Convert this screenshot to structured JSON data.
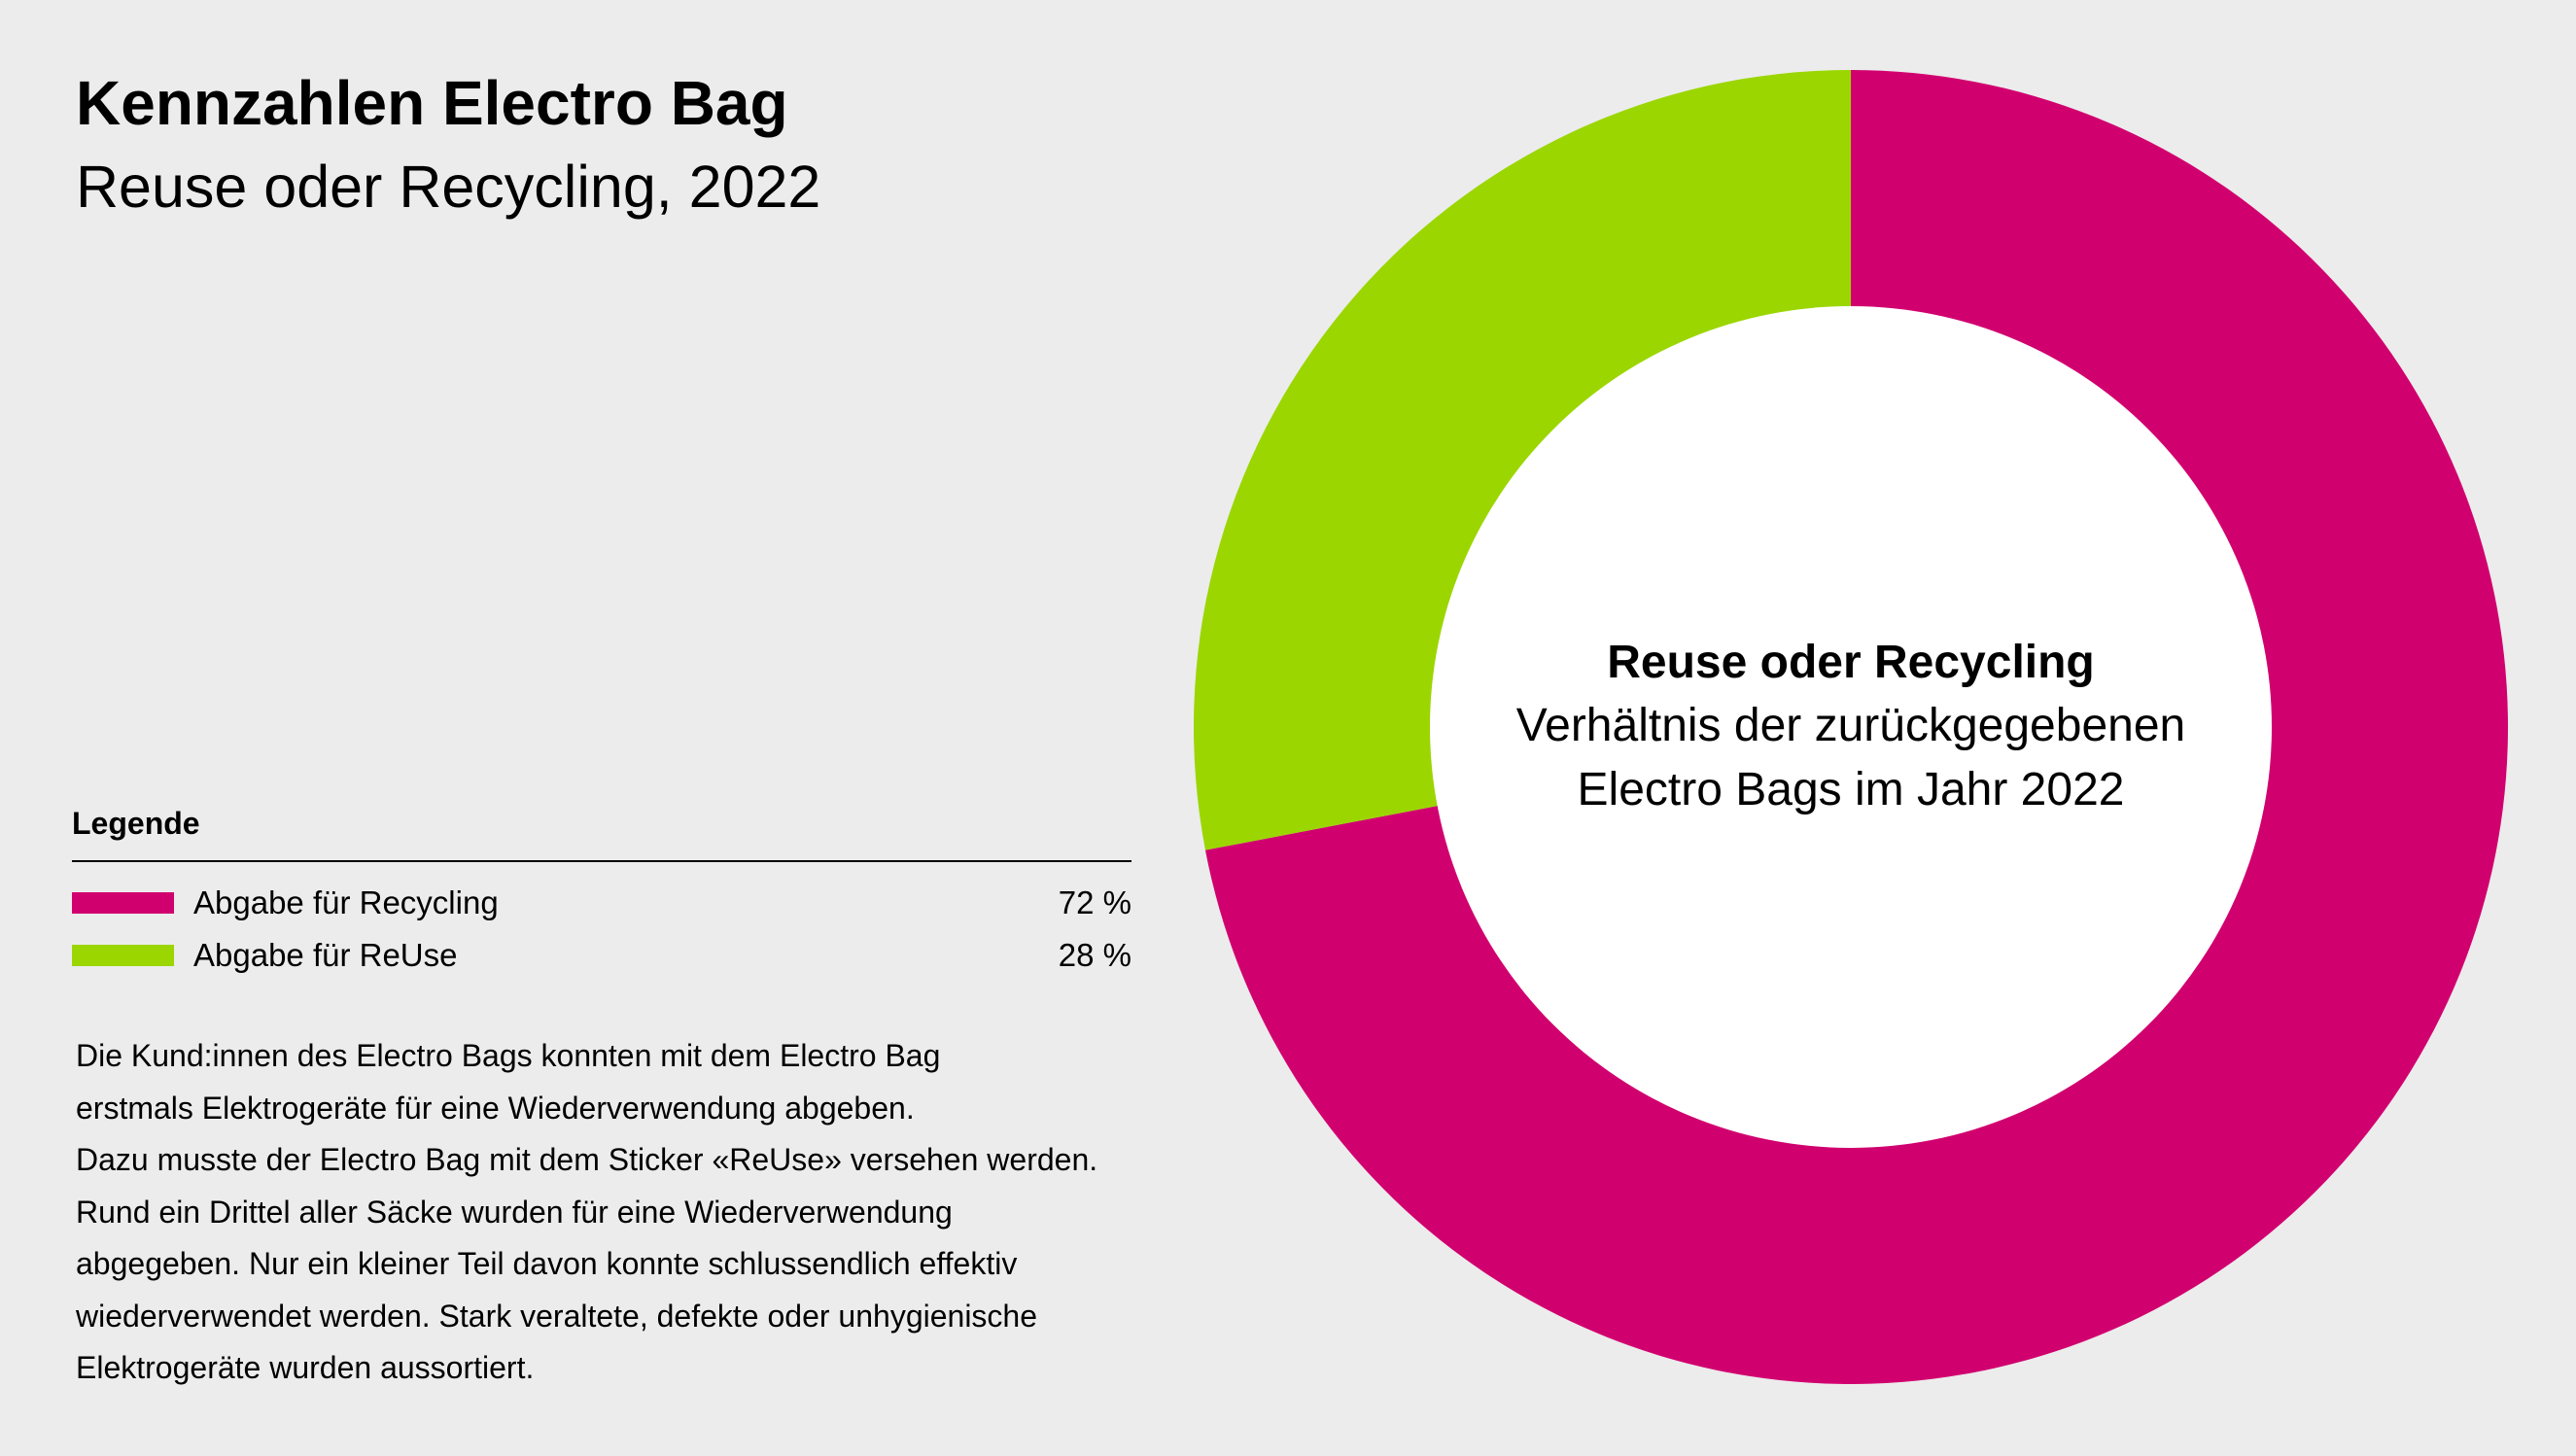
{
  "header": {
    "title": "Kennzahlen Electro Bag",
    "subtitle": "Reuse oder Recycling, 2022"
  },
  "colors": {
    "recycling": "#d1006f",
    "reuse": "#9bd600",
    "center": "#ffffff",
    "background": "#ececec"
  },
  "legend": {
    "heading": "Legende",
    "items": [
      {
        "label": "Abgabe für Recycling",
        "value": "72 %",
        "color": "#d1006f"
      },
      {
        "label": "Abgabe für ReUse",
        "value": "28 %",
        "color": "#9bd600"
      }
    ]
  },
  "description": {
    "lines": [
      "Die Kund:innen des Electro Bags konnten mit dem Electro Bag",
      "erstmals Elektrogeräte für eine Wiederverwendung abgeben.",
      "Dazu musste der Electro Bag mit dem Sticker «ReUse» versehen werden.",
      "Rund ein Drittel aller Säcke wurden für eine Wiederverwendung",
      "abgegeben. Nur ein kleiner Teil davon konnte schlussendlich effektiv",
      "wiederverwendet werden. Stark veraltete, defekte oder unhygienische",
      "Elektrogeräte wurden aussortiert."
    ]
  },
  "chart_data": {
    "type": "pie",
    "title": "Reuse oder Recycling",
    "subtitle_lines": [
      "Verhältnis der zurückgegebenen",
      "Electro Bags im Jahr 2022"
    ],
    "categories": [
      "Abgabe für Recycling",
      "Abgabe für ReUse"
    ],
    "values": [
      72,
      28
    ],
    "unit": "%",
    "colors": [
      "#d1006f",
      "#9bd600"
    ],
    "donut": true,
    "start": "top",
    "direction": "clockwise"
  }
}
